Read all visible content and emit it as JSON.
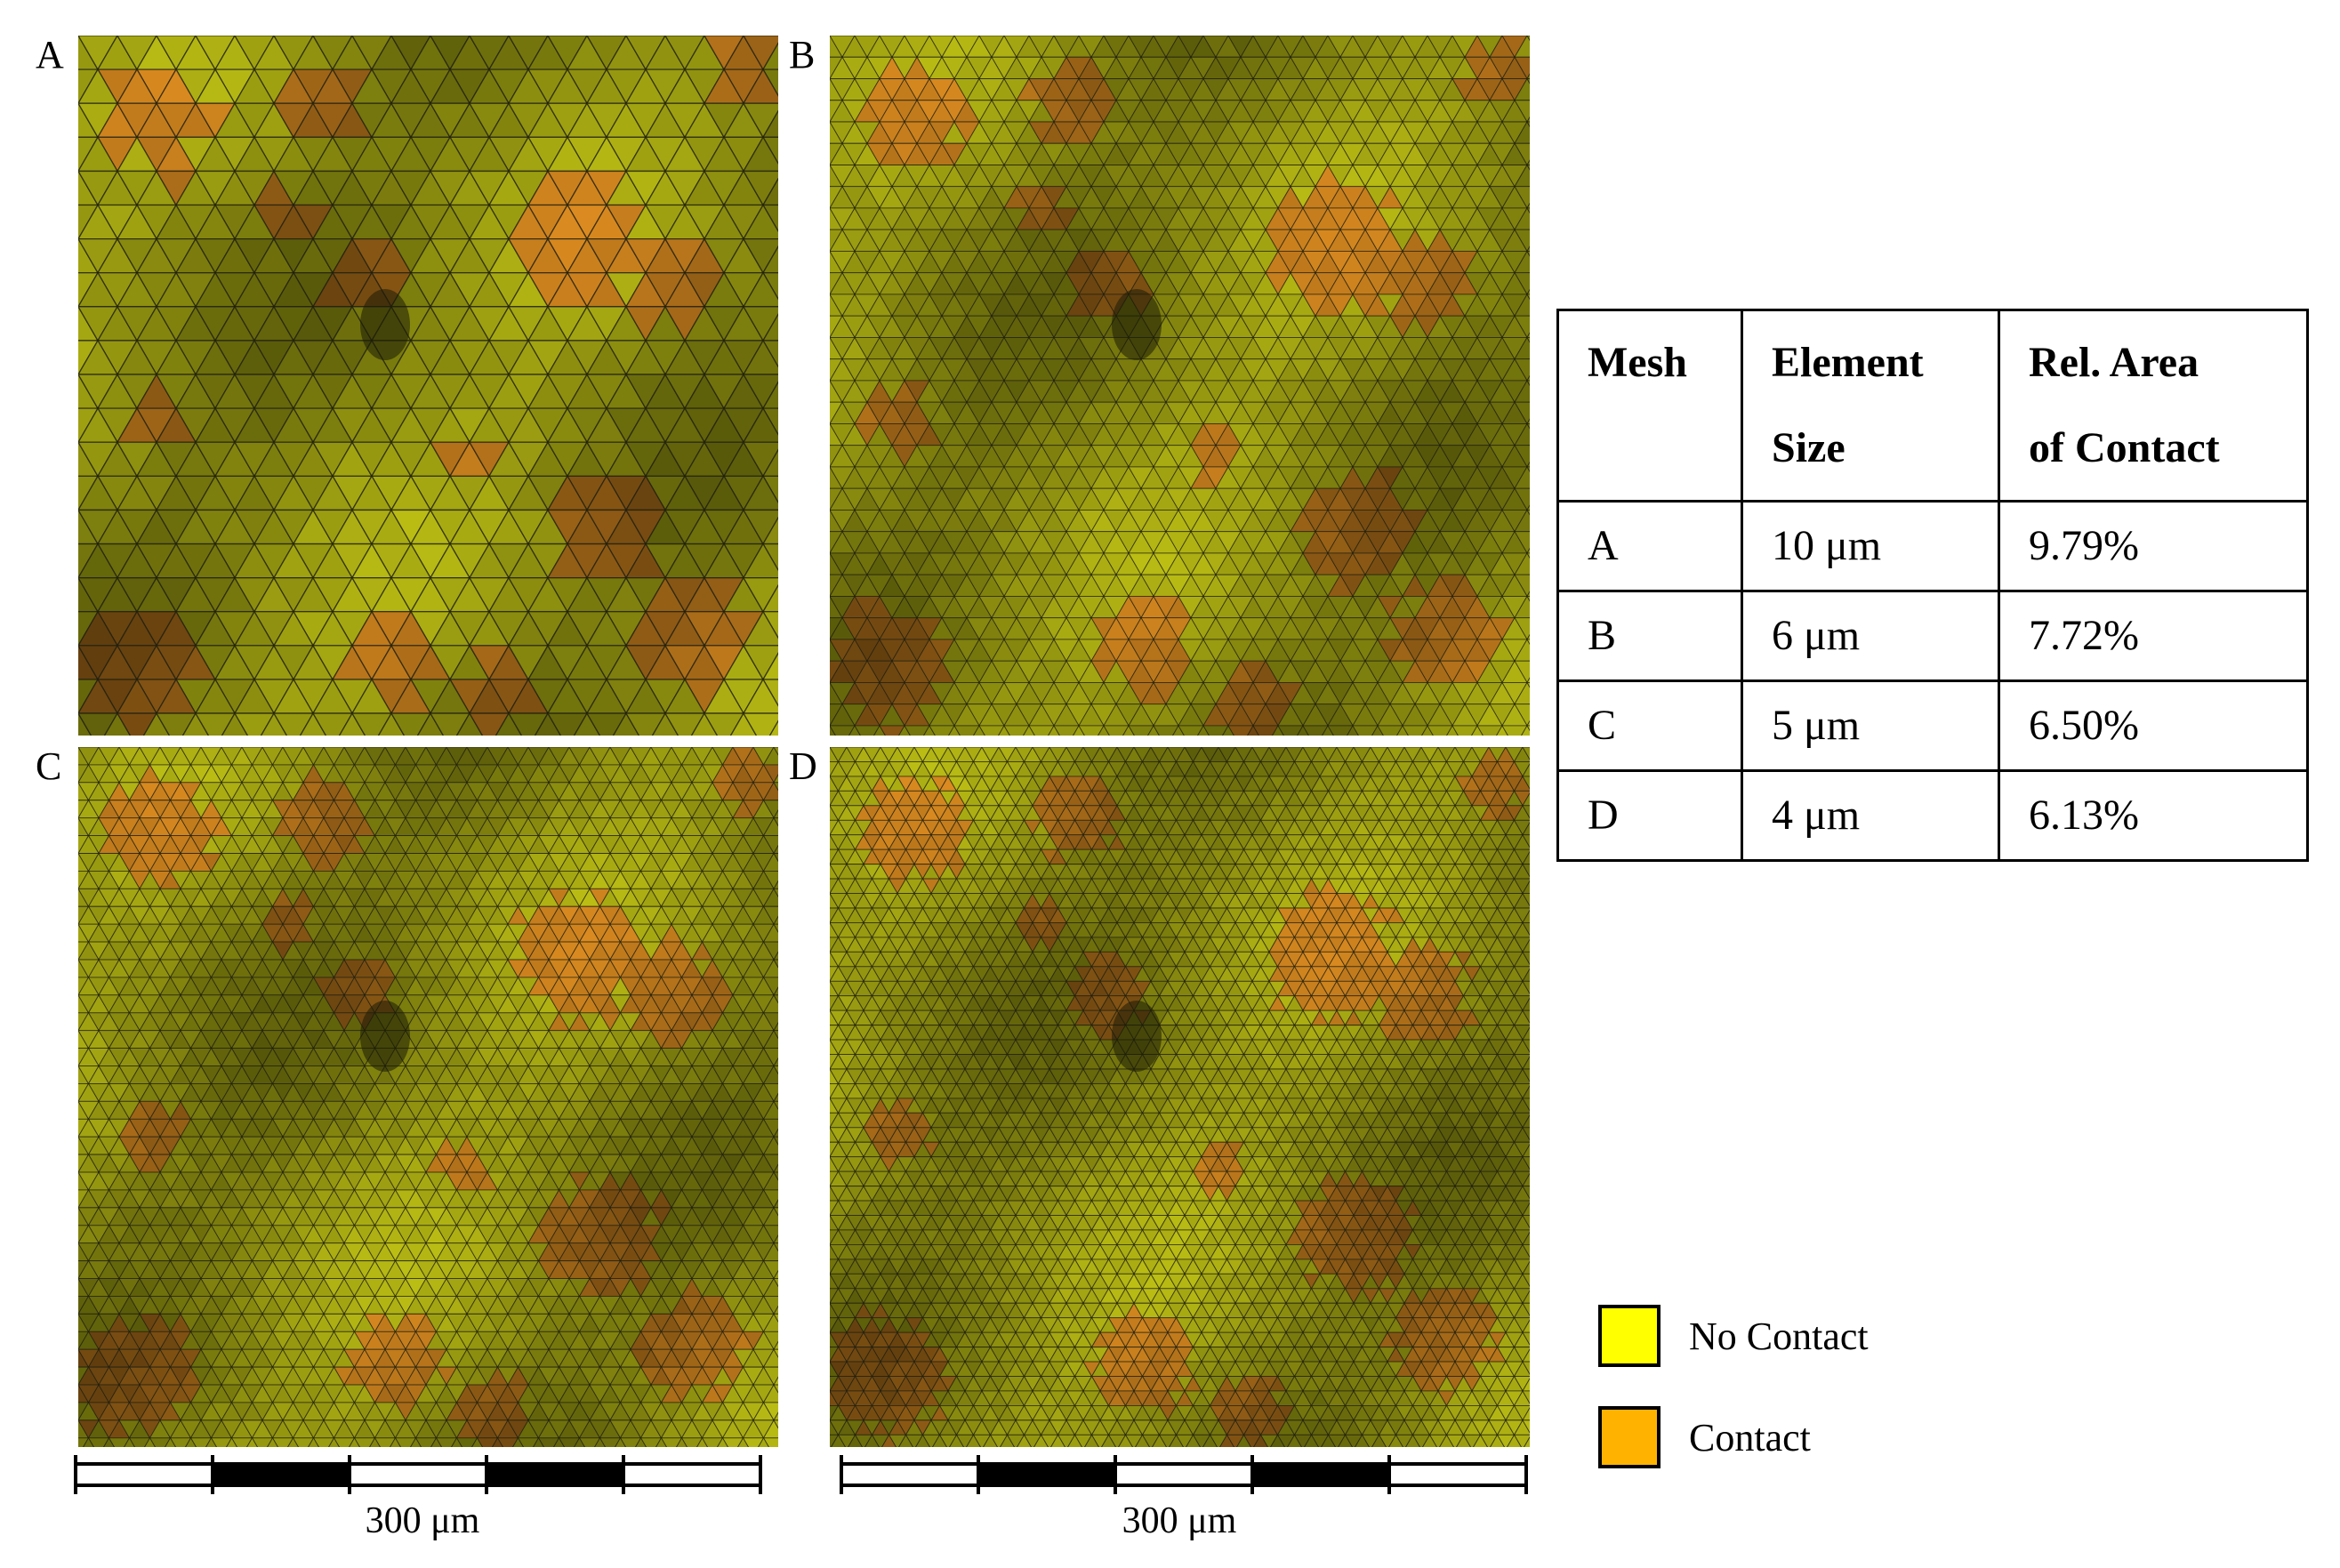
{
  "panels": [
    {
      "label": "A",
      "cell": 44,
      "seed": 11
    },
    {
      "label": "B",
      "cell": 28,
      "seed": 23
    },
    {
      "label": "C",
      "cell": 23,
      "seed": 37
    },
    {
      "label": "D",
      "cell": 19,
      "seed": 51
    }
  ],
  "colors": {
    "no_contact": "#ffff00",
    "contact": "#ffb300",
    "mesh_base": "#a6a812",
    "mesh_contact": "#c07a1c",
    "mesh_line": "#1e1e10"
  },
  "scalebars": [
    {
      "caption": "300 μm"
    },
    {
      "caption": "300 μm"
    }
  ],
  "table": {
    "headers": [
      {
        "line1": "Mesh",
        "line2": ""
      },
      {
        "line1": "Element",
        "line2": "Size"
      },
      {
        "line1": "Rel. Area",
        "line2": "of Contact"
      }
    ],
    "rows": [
      {
        "mesh": "A",
        "size": "10 μm",
        "area": "9.79%"
      },
      {
        "mesh": "B",
        "size": "6 μm",
        "area": "7.72%"
      },
      {
        "mesh": "C",
        "size": "5 μm",
        "area": "6.50%"
      },
      {
        "mesh": "D",
        "size": "4 μm",
        "area": "6.13%"
      }
    ]
  },
  "legend": [
    {
      "label": "No Contact",
      "color": "#ffff00"
    },
    {
      "label": "Contact",
      "color": "#ffb300"
    }
  ]
}
